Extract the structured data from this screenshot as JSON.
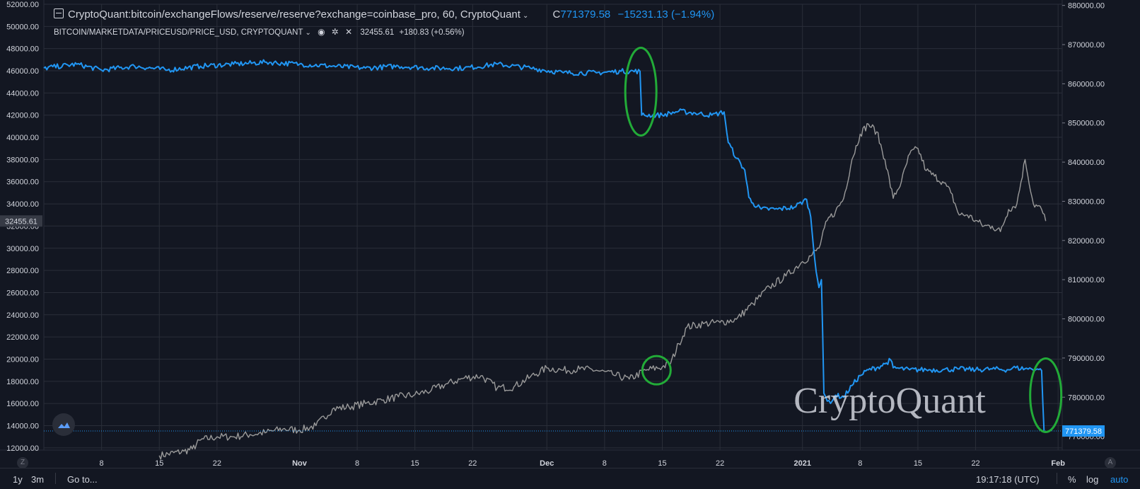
{
  "legend": {
    "series1": {
      "name": "CryptoQuant:bitcoin/exchangeFlows/reserve/reserve?exchange=coinbase_pro, 60, CryptoQuant",
      "close_label": "C",
      "close": "771379.58",
      "change": "−15231.13",
      "change_pct": "(−1.94%)"
    },
    "series2": {
      "name": "BITCOIN/MARKETDATA/PRICEUSD/PRICE_USD, CRYPTOQUANT",
      "value": "32455.61",
      "change": "+180.83",
      "change_pct": "(+0.56%)"
    }
  },
  "watermark": "CryptoQuant",
  "left_axis_badge": "32455.61",
  "right_axis_badge": "771379.58",
  "bottom_bar": {
    "range_1y": "1y",
    "range_3m": "3m",
    "goto": "Go to...",
    "time": "19:17:18 (UTC)",
    "percent": "%",
    "log": "log",
    "auto": "auto"
  },
  "corner_left": "Z",
  "corner_right": "A",
  "colors": {
    "background": "#131722",
    "reserve_line": "#2196f3",
    "price_line": "#9a9a9a",
    "annotation": "#22ab38"
  },
  "chart_data": {
    "type": "line",
    "x_ticks": [
      {
        "label": "8",
        "day": 8
      },
      {
        "label": "15",
        "day": 15
      },
      {
        "label": "22",
        "day": 22
      },
      {
        "label": "Nov",
        "day": 32
      },
      {
        "label": "8",
        "day": 39
      },
      {
        "label": "15",
        "day": 46
      },
      {
        "label": "22",
        "day": 53
      },
      {
        "label": "Dec",
        "day": 62
      },
      {
        "label": "8",
        "day": 69
      },
      {
        "label": "15",
        "day": 76
      },
      {
        "label": "22",
        "day": 83
      },
      {
        "label": "2021",
        "day": 93
      },
      {
        "label": "8",
        "day": 100
      },
      {
        "label": "15",
        "day": 107
      },
      {
        "label": "22",
        "day": 114
      },
      {
        "label": "Feb",
        "day": 124
      }
    ],
    "x_range": [
      1,
      124.5
    ],
    "left_axis": {
      "range": [
        11800,
        52000
      ],
      "ticks": [
        12000,
        14000,
        16000,
        18000,
        20000,
        22000,
        24000,
        26000,
        28000,
        30000,
        32000,
        34000,
        36000,
        38000,
        40000,
        42000,
        44000,
        46000,
        48000,
        50000,
        52000
      ],
      "tick_labels": [
        "12000.00",
        "14000.00",
        "16000.00",
        "18000.00",
        "20000.00",
        "22000.00",
        "24000.00",
        "26000.00",
        "28000.00",
        "30000.00",
        "32000.00",
        "34000.00",
        "36000.00",
        "38000.00",
        "40000.00",
        "42000.00",
        "44000.00",
        "46000.00",
        "48000.00",
        "50000.00",
        "52000.00"
      ]
    },
    "right_axis": {
      "range": [
        766500,
        880300
      ],
      "ticks": [
        770000,
        780000,
        790000,
        800000,
        810000,
        820000,
        830000,
        840000,
        850000,
        860000,
        870000,
        880000
      ],
      "tick_labels": [
        "770000.00",
        "780000.00",
        "790000.00",
        "800000.00",
        "810000.00",
        "820000.00",
        "830000.00",
        "840000.00",
        "850000.00",
        "860000.00",
        "870000.00",
        "880000.00"
      ]
    },
    "series": [
      {
        "name": "CryptoQuant:bitcoin/exchangeFlows/reserve/reserve?exchange=coinbase_pro",
        "axis": "right",
        "points": [
          [
            1,
            864000
          ],
          [
            5,
            865000
          ],
          [
            8,
            863500
          ],
          [
            12,
            864500
          ],
          [
            16,
            863500
          ],
          [
            20,
            864500
          ],
          [
            24,
            865000
          ],
          [
            28,
            865500
          ],
          [
            32,
            865000
          ],
          [
            36,
            864500
          ],
          [
            40,
            864000
          ],
          [
            44,
            864500
          ],
          [
            48,
            864000
          ],
          [
            52,
            864000
          ],
          [
            56,
            865000
          ],
          [
            60,
            864000
          ],
          [
            64,
            862800
          ],
          [
            68,
            862800
          ],
          [
            71,
            863200
          ],
          [
            73.3,
            863200
          ],
          [
            73.5,
            852000
          ],
          [
            76,
            852000
          ],
          [
            78,
            853000
          ],
          [
            80,
            852500
          ],
          [
            82,
            852000
          ],
          [
            83.5,
            852800
          ],
          [
            84,
            845000
          ],
          [
            85,
            841000
          ],
          [
            86,
            838000
          ],
          [
            86.5,
            831000
          ],
          [
            87,
            829500
          ],
          [
            88,
            828000
          ],
          [
            90,
            828000
          ],
          [
            92,
            828500
          ],
          [
            93.5,
            830500
          ],
          [
            94,
            826000
          ],
          [
            94.5,
            815000
          ],
          [
            95,
            808000
          ],
          [
            95.3,
            810000
          ],
          [
            95.6,
            781000
          ],
          [
            96,
            779000
          ],
          [
            96.6,
            779000
          ],
          [
            97,
            780500
          ],
          [
            98,
            780000
          ],
          [
            99,
            783000
          ],
          [
            100,
            785500
          ],
          [
            101,
            787000
          ],
          [
            102,
            787500
          ],
          [
            103,
            788500
          ],
          [
            103.7,
            789500
          ],
          [
            104,
            787500
          ],
          [
            106,
            787000
          ],
          [
            108,
            787000
          ],
          [
            110,
            787000
          ],
          [
            112,
            787200
          ],
          [
            114,
            787000
          ],
          [
            116,
            787200
          ],
          [
            118,
            787000
          ],
          [
            118.5,
            787500
          ],
          [
            120,
            787300
          ],
          [
            121.5,
            787200
          ],
          [
            122,
            786800
          ],
          [
            122.3,
            771400
          ]
        ],
        "last_value": 771379.58
      },
      {
        "name": "BITCOIN/MARKETDATA/PRICEUSD/PRICE_USD",
        "axis": "left",
        "points": [
          [
            15,
            11300
          ],
          [
            18,
            11700
          ],
          [
            19,
            11900
          ],
          [
            20,
            12700
          ],
          [
            22,
            13000
          ],
          [
            24,
            13000
          ],
          [
            26,
            13200
          ],
          [
            28,
            13400
          ],
          [
            30,
            13700
          ],
          [
            32,
            13600
          ],
          [
            34,
            14000
          ],
          [
            36,
            15500
          ],
          [
            38,
            15700
          ],
          [
            40,
            16000
          ],
          [
            42,
            16300
          ],
          [
            44,
            16600
          ],
          [
            46,
            16800
          ],
          [
            48,
            17200
          ],
          [
            50,
            17800
          ],
          [
            52,
            18300
          ],
          [
            54,
            18500
          ],
          [
            56,
            17400
          ],
          [
            58,
            17500
          ],
          [
            60,
            18400
          ],
          [
            62,
            19200
          ],
          [
            64,
            19000
          ],
          [
            66,
            19100
          ],
          [
            68,
            19000
          ],
          [
            70,
            18600
          ],
          [
            72,
            18200
          ],
          [
            74,
            19000
          ],
          [
            76,
            19300
          ],
          [
            77,
            19600
          ],
          [
            78,
            21400
          ],
          [
            79,
            22900
          ],
          [
            81,
            23200
          ],
          [
            83,
            23300
          ],
          [
            85,
            23600
          ],
          [
            87,
            25000
          ],
          [
            89,
            26500
          ],
          [
            91,
            27500
          ],
          [
            93,
            28800
          ],
          [
            94,
            29300
          ],
          [
            95,
            30000
          ],
          [
            96,
            32500
          ],
          [
            97,
            33300
          ],
          [
            98,
            34500
          ],
          [
            99,
            38000
          ],
          [
            100,
            40300
          ],
          [
            101,
            41200
          ],
          [
            102,
            40500
          ],
          [
            103,
            38000
          ],
          [
            104,
            34500
          ],
          [
            105,
            36000
          ],
          [
            106,
            38500
          ],
          [
            107,
            39000
          ],
          [
            108,
            37000
          ],
          [
            109,
            36500
          ],
          [
            110,
            36000
          ],
          [
            111,
            35000
          ],
          [
            112,
            33000
          ],
          [
            113,
            33000
          ],
          [
            114,
            32500
          ],
          [
            115,
            32000
          ],
          [
            116,
            32000
          ],
          [
            117,
            31500
          ],
          [
            118,
            33500
          ],
          [
            119,
            34000
          ],
          [
            120,
            38000
          ],
          [
            121,
            34000
          ],
          [
            122,
            33500
          ],
          [
            122.5,
            32455.61
          ]
        ],
        "last_value": 32455.61
      }
    ],
    "annotations": [
      {
        "type": "ellipse",
        "day": 73.4,
        "axis": "right",
        "value": 858000,
        "note": "reserve drop"
      },
      {
        "type": "ellipse",
        "day": 75.3,
        "axis": "left",
        "value": 19000,
        "note": "price"
      },
      {
        "type": "ellipse",
        "day": 122.5,
        "axis": "right",
        "value": 780500,
        "note": "reserve drop"
      }
    ]
  }
}
